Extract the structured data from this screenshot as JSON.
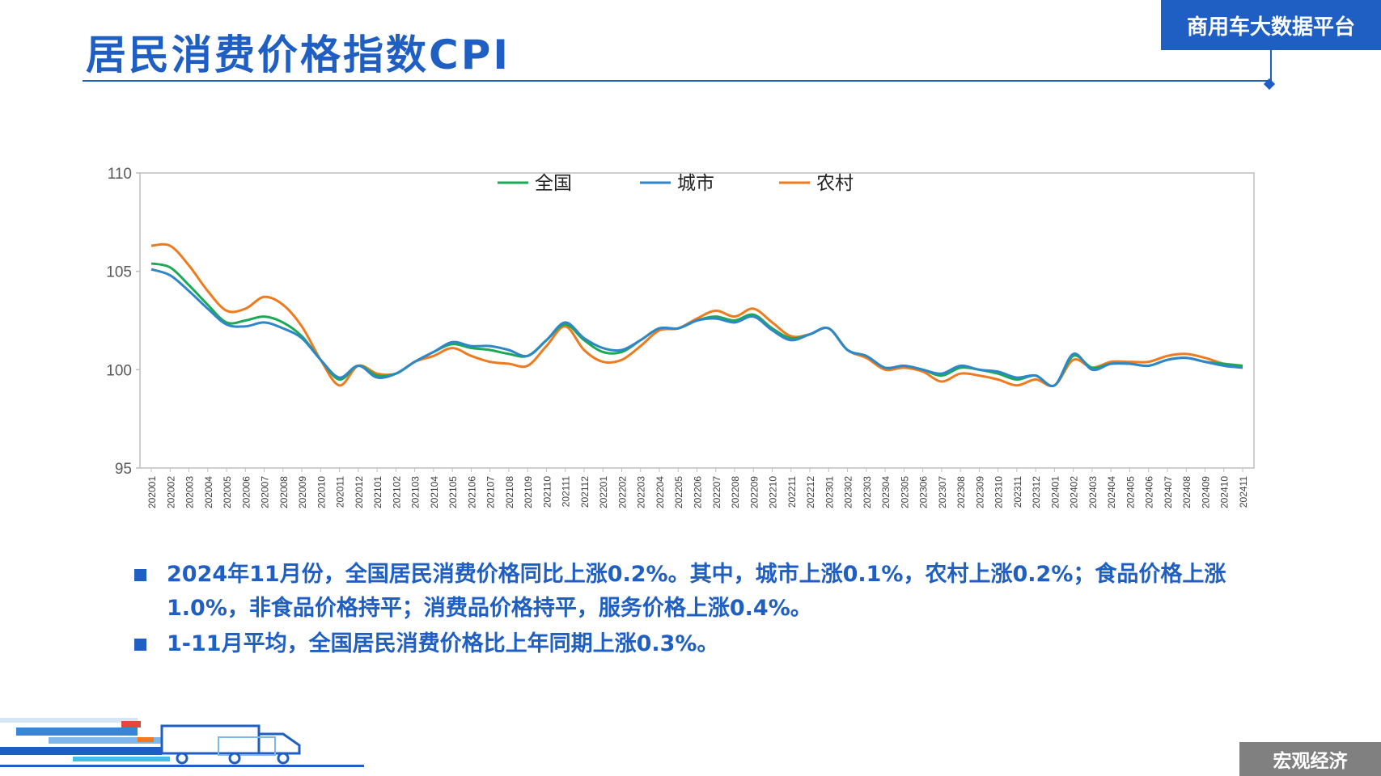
{
  "header": {
    "title": "居民消费价格指数CPI",
    "brand": "商用车大数据平台"
  },
  "colors": {
    "accent": "#1f5fc4",
    "national": "#1aaa55",
    "urban": "#2f86c8",
    "rural": "#f07a1e"
  },
  "chart_data": {
    "type": "line",
    "title": "",
    "xlabel": "",
    "ylabel": "",
    "ylim": [
      95,
      110
    ],
    "yticks": [
      95,
      100,
      105,
      110
    ],
    "legend_position": "top-center",
    "grid": false,
    "categories": [
      "202001",
      "202002",
      "202003",
      "202004",
      "202005",
      "202006",
      "202007",
      "202008",
      "202009",
      "202010",
      "202011",
      "202012",
      "202101",
      "202102",
      "202103",
      "202104",
      "202105",
      "202106",
      "202107",
      "202108",
      "202109",
      "202110",
      "202111",
      "202112",
      "202201",
      "202202",
      "202203",
      "202204",
      "202205",
      "202206",
      "202207",
      "202208",
      "202209",
      "202210",
      "202211",
      "202212",
      "202301",
      "202302",
      "202303",
      "202304",
      "202305",
      "202306",
      "202307",
      "202308",
      "202309",
      "202310",
      "202311",
      "202312",
      "202401",
      "202402",
      "202403",
      "202404",
      "202405",
      "202406",
      "202407",
      "202408",
      "202409",
      "202410",
      "202411"
    ],
    "series": [
      {
        "name": "全国",
        "color": "#1aaa55",
        "values": [
          105.4,
          105.2,
          104.3,
          103.3,
          102.4,
          102.5,
          102.7,
          102.4,
          101.7,
          100.5,
          99.5,
          100.2,
          99.7,
          99.8,
          100.4,
          100.9,
          101.3,
          101.1,
          101.0,
          100.8,
          100.7,
          101.5,
          102.3,
          101.5,
          100.9,
          100.9,
          101.5,
          102.1,
          102.1,
          102.5,
          102.7,
          102.5,
          102.8,
          102.1,
          101.6,
          101.8,
          102.1,
          101.0,
          100.7,
          100.1,
          100.2,
          100.0,
          99.7,
          100.1,
          100.0,
          99.8,
          99.5,
          99.7,
          99.2,
          100.7,
          100.1,
          100.3,
          100.3,
          100.2,
          100.5,
          100.6,
          100.4,
          100.3,
          100.2
        ]
      },
      {
        "name": "城市",
        "color": "#2f86c8",
        "values": [
          105.1,
          104.8,
          104.0,
          103.1,
          102.3,
          102.2,
          102.4,
          102.1,
          101.6,
          100.5,
          99.6,
          100.2,
          99.6,
          99.8,
          100.4,
          100.9,
          101.4,
          101.2,
          101.2,
          101.0,
          100.7,
          101.5,
          102.4,
          101.6,
          101.1,
          101.0,
          101.5,
          102.1,
          102.1,
          102.5,
          102.6,
          102.4,
          102.7,
          102.0,
          101.5,
          101.8,
          102.1,
          101.0,
          100.7,
          100.1,
          100.2,
          100.0,
          99.8,
          100.2,
          100.0,
          99.9,
          99.6,
          99.7,
          99.2,
          100.8,
          100.0,
          100.3,
          100.3,
          100.2,
          100.5,
          100.6,
          100.4,
          100.2,
          100.1
        ]
      },
      {
        "name": "农村",
        "color": "#f07a1e",
        "values": [
          106.3,
          106.3,
          105.3,
          104.0,
          103.0,
          103.1,
          103.7,
          103.3,
          102.2,
          100.5,
          99.2,
          100.2,
          99.8,
          99.8,
          100.4,
          100.7,
          101.1,
          100.7,
          100.4,
          100.3,
          100.2,
          101.2,
          102.2,
          101.0,
          100.4,
          100.5,
          101.2,
          102.0,
          102.1,
          102.6,
          103.0,
          102.7,
          103.1,
          102.4,
          101.7,
          101.8,
          102.1,
          101.0,
          100.6,
          100.0,
          100.1,
          99.9,
          99.4,
          99.8,
          99.7,
          99.5,
          99.2,
          99.5,
          99.2,
          100.5,
          100.1,
          100.4,
          100.4,
          100.4,
          100.7,
          100.8,
          100.6,
          100.3,
          100.2
        ]
      }
    ]
  },
  "bullets": [
    "2024年11月份，全国居民消费价格同比上涨0.2%。其中，城市上涨0.1%，农村上涨0.2%；食品价格上涨1.0%，非食品价格持平；消费品价格持平，服务价格上涨0.4%。",
    "1-11月平均，全国居民消费价格比上年同期上涨0.3%。"
  ],
  "footer": {
    "section": "宏观经济"
  }
}
